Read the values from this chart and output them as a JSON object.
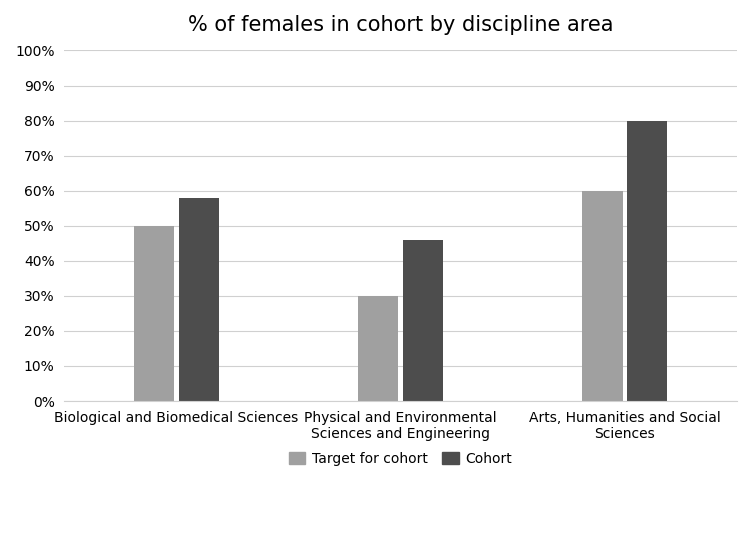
{
  "title": "% of females in cohort by discipline area",
  "categories": [
    "Biological and Biomedical Sciences",
    "Physical and Environmental\nSciences and Engineering",
    "Arts, Humanities and Social\nSciences"
  ],
  "series": {
    "Target for cohort": [
      0.5,
      0.3,
      0.6
    ],
    "Cohort": [
      0.58,
      0.46,
      0.8
    ]
  },
  "color_target": "#a0a0a0",
  "color_cohort": "#4d4d4d",
  "ylim": [
    0,
    1.0
  ],
  "yticks": [
    0,
    0.1,
    0.2,
    0.3,
    0.4,
    0.5,
    0.6,
    0.7,
    0.8,
    0.9,
    1.0
  ],
  "ytick_labels": [
    "0%",
    "10%",
    "20%",
    "30%",
    "40%",
    "50%",
    "60%",
    "70%",
    "80%",
    "90%",
    "100%"
  ],
  "bar_width": 0.18,
  "legend_labels": [
    "Target for cohort",
    "Cohort"
  ],
  "background_color": "#ffffff",
  "title_fontsize": 15,
  "tick_fontsize": 10,
  "legend_fontsize": 10,
  "group_positions": [
    0,
    1,
    2
  ],
  "xlim_left": -0.5,
  "xlim_right": 2.5
}
